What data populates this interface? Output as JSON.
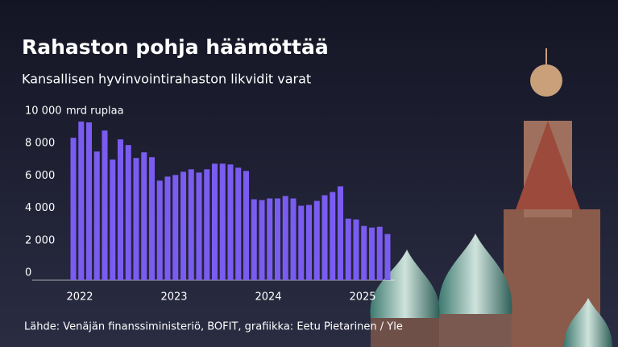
{
  "chart_data": {
    "type": "bar",
    "title": "Rahaston pohja häämöttää",
    "subtitle": "Kansallisen hyvinvointirahaston likvidit varat",
    "y_label": "mrd ruplaa",
    "source": "Lähde: Venäjän finanssiministeriö, BOFIT, grafiikka: Eetu Pietarinen / Yle",
    "categories": [
      "2022",
      null,
      null,
      null,
      null,
      null,
      null,
      null,
      null,
      null,
      null,
      null,
      "2023",
      null,
      null,
      null,
      null,
      null,
      null,
      null,
      null,
      null,
      null,
      null,
      "2024",
      null,
      null,
      null,
      null,
      null,
      null,
      null,
      null,
      null,
      null,
      null,
      "2025",
      null,
      null,
      null,
      null
    ],
    "values": [
      8800,
      9800,
      9750,
      7950,
      9250,
      7450,
      8700,
      8350,
      7550,
      7900,
      7600,
      6150,
      6400,
      6500,
      6700,
      6850,
      6650,
      6850,
      7200,
      7200,
      7150,
      6950,
      6750,
      5000,
      4950,
      5050,
      5050,
      5200,
      5050,
      4600,
      4650,
      4900,
      5250,
      5450,
      5800,
      3800,
      3750,
      3350,
      3250,
      3300,
      2850
    ],
    "color": "#7b5cf0",
    "ylim": [
      0,
      10000
    ],
    "yticks": [
      0,
      {
        "value": 2000,
        "label": "2 000"
      },
      {
        "value": 4000,
        "label": "4 000"
      },
      {
        "value": 6000,
        "label": "6 000"
      },
      {
        "value": 8000,
        "label": "8 000"
      },
      {
        "value": 10000,
        "label": "10 000"
      }
    ],
    "grid": false
  }
}
